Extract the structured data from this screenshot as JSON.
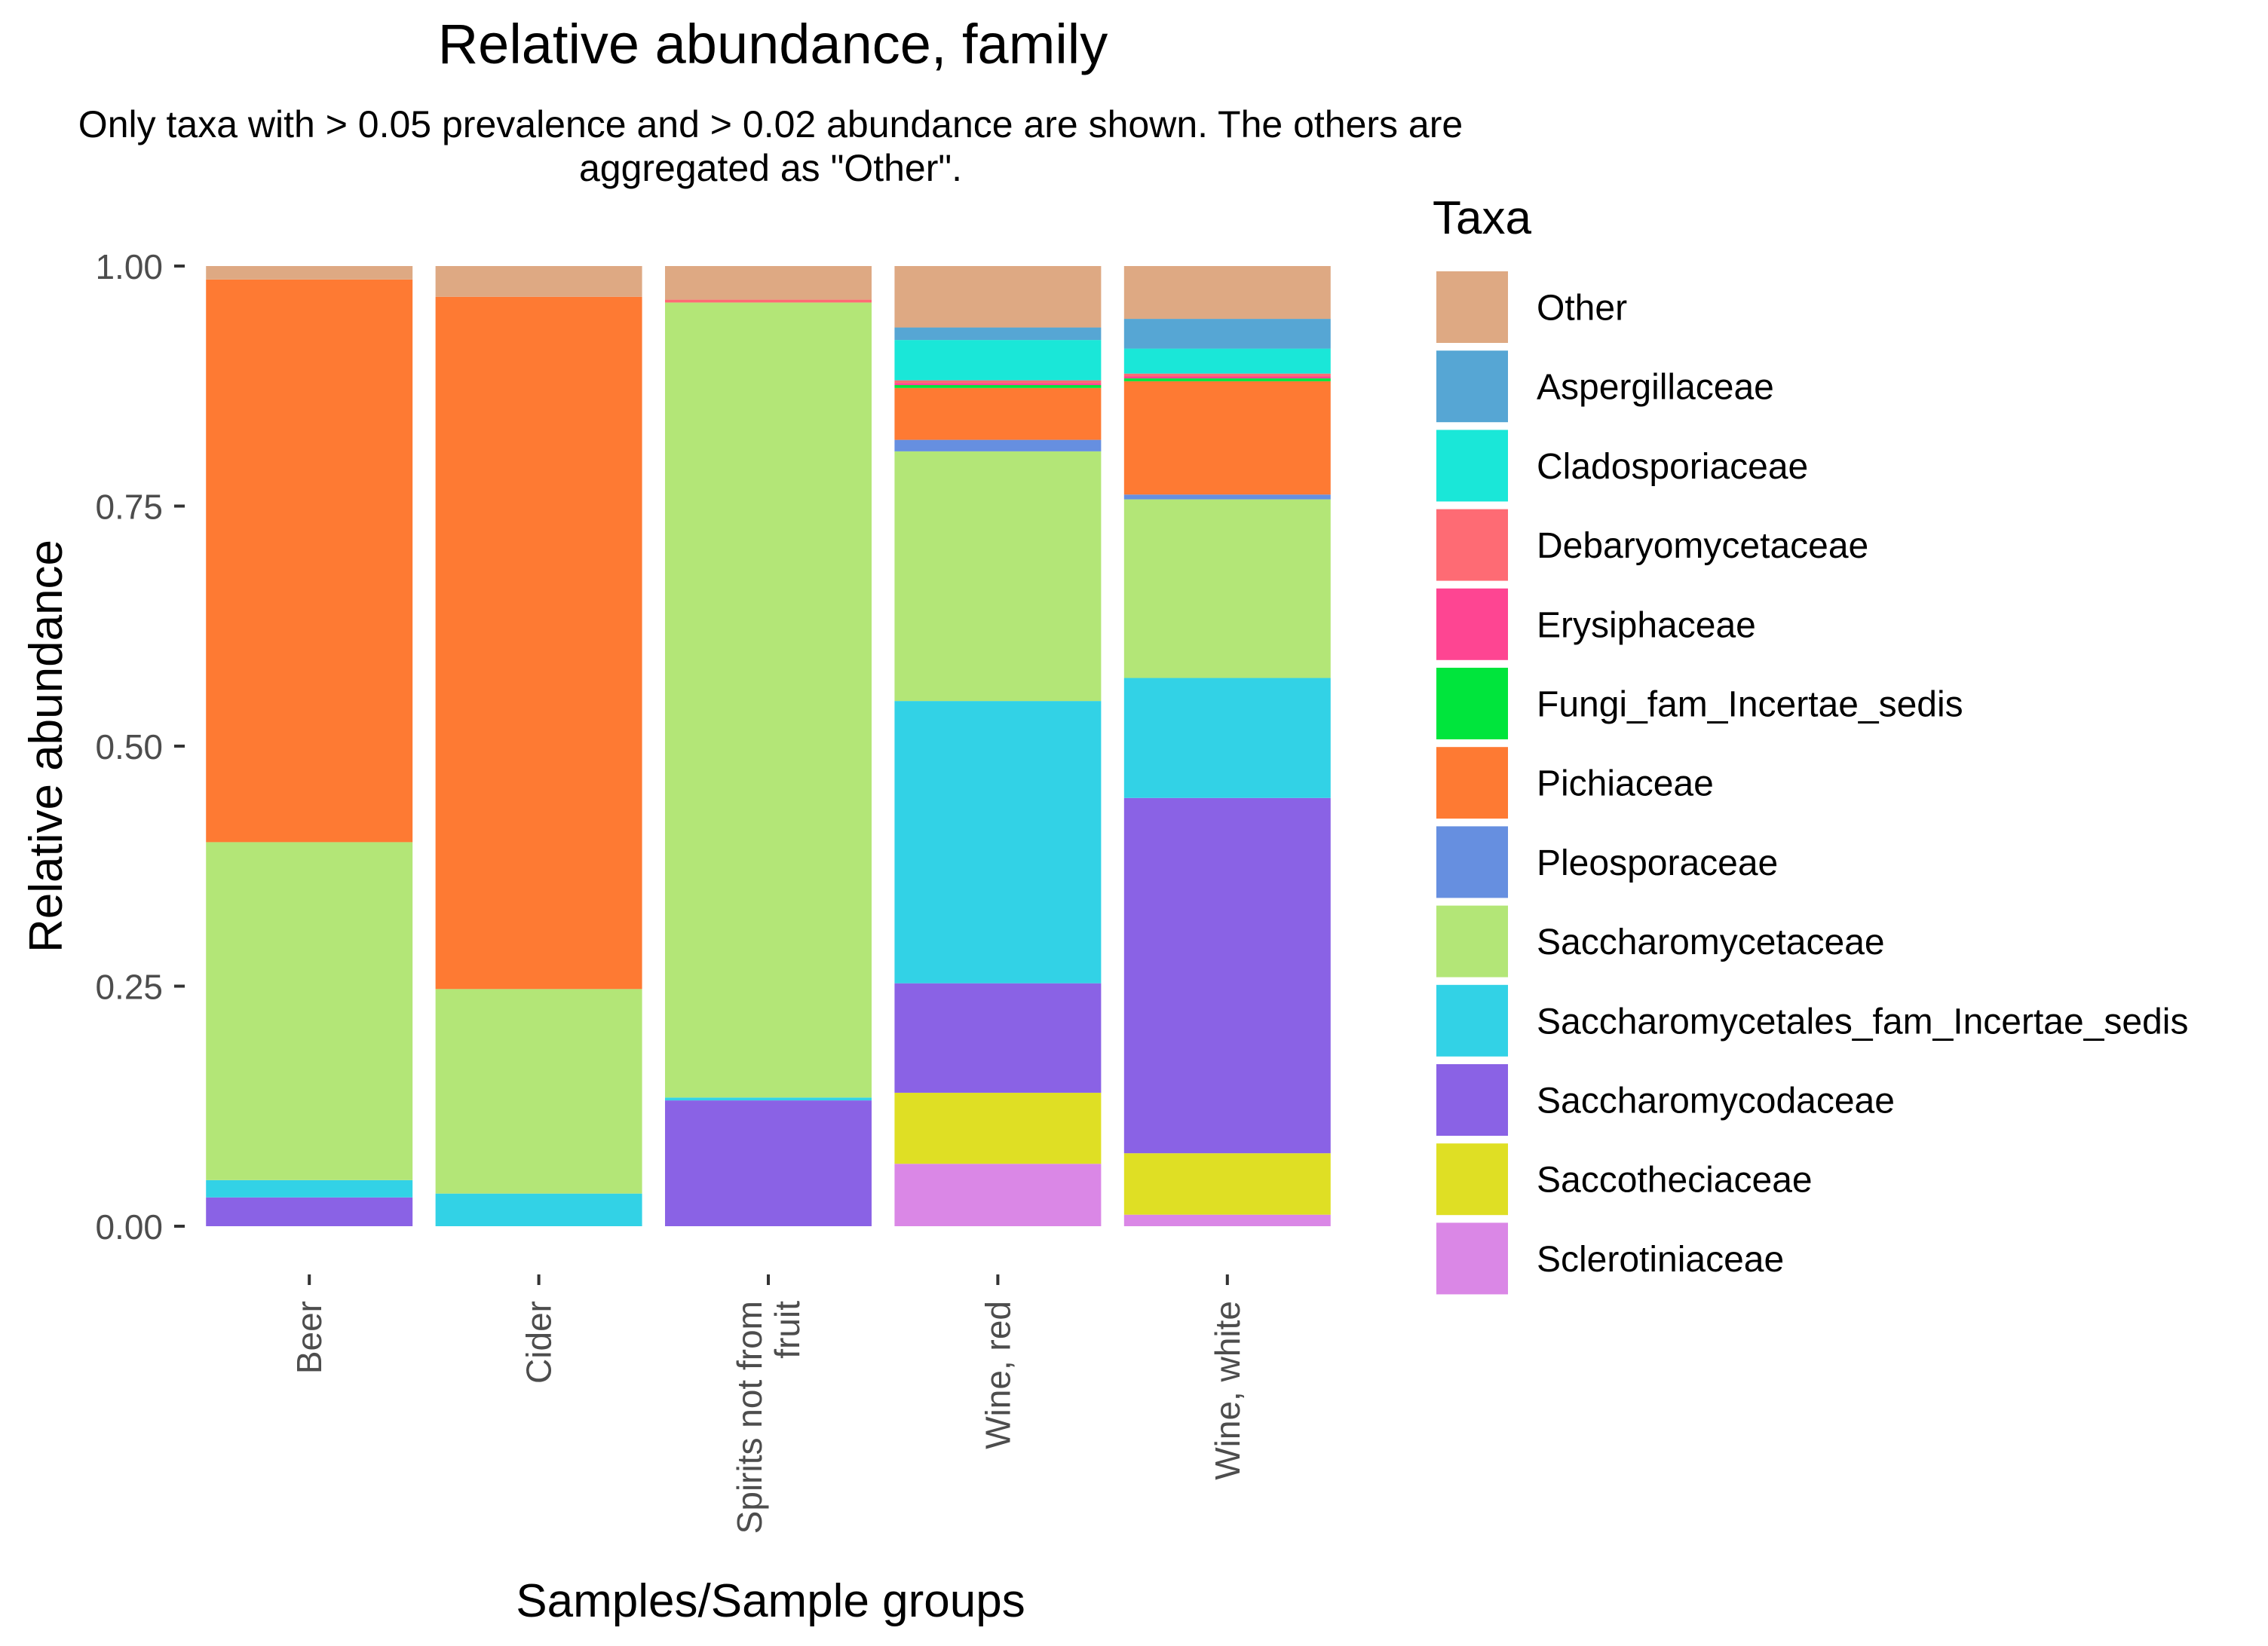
{
  "chart_data": {
    "type": "bar",
    "stacked": true,
    "title": "Relative abundance, family",
    "subtitle_lines": [
      "Only taxa with > 0.05 prevalence and > 0.02 abundance are shown. The others are",
      "aggregated as \"Other\"."
    ],
    "xlabel": "Samples/Sample groups",
    "ylabel": "Relative abundance",
    "ylim": [
      0,
      1
    ],
    "yticks": [
      0,
      0.25,
      0.5,
      0.75,
      1
    ],
    "ytick_labels": [
      "0.00",
      "0.25",
      "0.50",
      "0.75",
      "1.00"
    ],
    "categories": [
      "Beer",
      "Cider",
      "Spirits not from fruit",
      "Wine, red",
      "Wine, white"
    ],
    "category_label_lines": [
      [
        "Beer"
      ],
      [
        "Cider"
      ],
      [
        "Spirits not from",
        "fruit"
      ],
      [
        "Wine, red"
      ],
      [
        "Wine, white"
      ]
    ],
    "legend_title": "Taxa",
    "legend_position": "right",
    "series": [
      {
        "name": "Other",
        "color": "#DEA983",
        "values": [
          0.014,
          0.032,
          0.035,
          0.064,
          0.055
        ]
      },
      {
        "name": "Aspergillaceae",
        "color": "#56A6D4",
        "values": [
          0.0,
          0.0,
          0.0,
          0.013,
          0.031
        ]
      },
      {
        "name": "Cladosporiaceae",
        "color": "#1AE7D8",
        "values": [
          0.0,
          0.0,
          0.0,
          0.042,
          0.026
        ]
      },
      {
        "name": "Debaryomycetaceae",
        "color": "#FE6B74",
        "values": [
          0.0,
          0.0,
          0.003,
          0.003,
          0.003
        ]
      },
      {
        "name": "Erysiphaceae",
        "color": "#FE4592",
        "values": [
          0.0,
          0.0,
          0.0,
          0.002,
          0.002
        ]
      },
      {
        "name": "Fungi_fam_Incertae_sedis",
        "color": "#00E53C",
        "values": [
          0.0,
          0.0,
          0.0,
          0.003,
          0.003
        ]
      },
      {
        "name": "Pichiaceae",
        "color": "#FE7A33",
        "values": [
          0.586,
          0.721,
          0.0,
          0.054,
          0.118
        ]
      },
      {
        "name": "Pleosporaceae",
        "color": "#668FE0",
        "values": [
          0.0,
          0.0,
          0.0,
          0.012,
          0.005
        ]
      },
      {
        "name": "Saccharomycetaceae",
        "color": "#B3E677",
        "values": [
          0.352,
          0.213,
          0.828,
          0.26,
          0.186
        ]
      },
      {
        "name": "Saccharomycetales_fam_Incertae_sedis",
        "color": "#32D2E6",
        "values": [
          0.018,
          0.034,
          0.003,
          0.294,
          0.125
        ]
      },
      {
        "name": "Saccharomycodaceae",
        "color": "#8A62E5",
        "values": [
          0.03,
          0.0,
          0.131,
          0.114,
          0.37
        ]
      },
      {
        "name": "Saccotheciaceae",
        "color": "#DFDF24",
        "values": [
          0.0,
          0.0,
          0.0,
          0.074,
          0.064
        ]
      },
      {
        "name": "Sclerotiniaceae",
        "color": "#DA87E6",
        "values": [
          0.0,
          0.0,
          0.0,
          0.065,
          0.012
        ]
      }
    ]
  }
}
